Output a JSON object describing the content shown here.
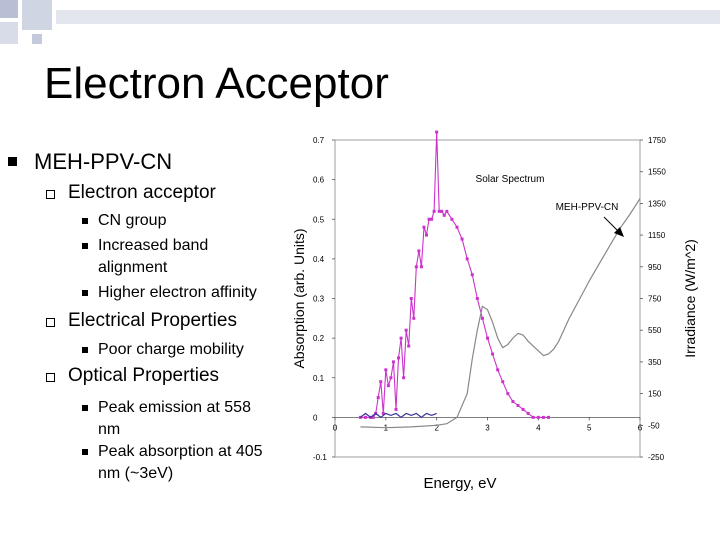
{
  "slide": {
    "title": "Electron Acceptor",
    "bullet_main": "MEH-PPV-CN",
    "sub1": "Electron acceptor",
    "sub1_items": [
      "CN group",
      "Increased band",
      "alignment",
      "Higher electron affinity"
    ],
    "sub2": "Electrical Properties",
    "sub2_items": [
      "Poor charge mobility"
    ],
    "sub3": "Optical Properties",
    "sub3_items": [
      "Peak emission at 558",
      "nm",
      "Peak absorption at 405",
      "nm (~3eV)"
    ]
  },
  "colors": {
    "solar": "#cc33cc",
    "meh": "#888888",
    "blue": "#333399",
    "deco1": "#c0c6d8",
    "deco2": "#dcdfe8"
  },
  "chart_data": {
    "type": "line",
    "xlabel": "Energy, eV",
    "ylabel": "Absorption (arb. Units)",
    "y2label": "Irradiance (W/m^2)",
    "xlim": [
      0,
      6
    ],
    "ylim": [
      -0.1,
      0.7
    ],
    "y2lim": [
      -250,
      1750
    ],
    "xticks": [
      "0",
      "1",
      "2",
      "3",
      "4",
      "5",
      "6"
    ],
    "yticks": [
      "-0.1",
      "0",
      "0.1",
      "0.2",
      "0.3",
      "0.4",
      "0.5",
      "0.6",
      "0.7"
    ],
    "y2ticks": [
      "-250",
      "-50",
      "150",
      "350",
      "550",
      "750",
      "950",
      "1150",
      "1350",
      "1550",
      "1750"
    ],
    "annotations": [
      "Solar Spectrum",
      "MEH-PPV-CN"
    ],
    "series": [
      {
        "name": "Solar Spectrum",
        "axis": "left",
        "x": [
          0.5,
          0.6,
          0.7,
          0.75,
          0.8,
          0.85,
          0.9,
          0.95,
          1.0,
          1.05,
          1.1,
          1.15,
          1.2,
          1.25,
          1.3,
          1.35,
          1.4,
          1.45,
          1.5,
          1.55,
          1.6,
          1.65,
          1.7,
          1.75,
          1.8,
          1.85,
          1.9,
          1.95,
          2.0,
          2.05,
          2.1,
          2.15,
          2.2,
          2.3,
          2.4,
          2.5,
          2.6,
          2.7,
          2.8,
          2.9,
          3.0,
          3.1,
          3.2,
          3.3,
          3.4,
          3.5,
          3.6,
          3.7,
          3.8,
          3.9,
          4.0,
          4.1,
          4.2
        ],
        "y": [
          0.0,
          0.0,
          0.0,
          0.0,
          0.01,
          0.05,
          0.09,
          0.01,
          0.12,
          0.08,
          0.1,
          0.14,
          0.02,
          0.15,
          0.2,
          0.1,
          0.22,
          0.18,
          0.3,
          0.25,
          0.38,
          0.42,
          0.38,
          0.48,
          0.46,
          0.5,
          0.5,
          0.52,
          0.72,
          0.52,
          0.52,
          0.51,
          0.52,
          0.5,
          0.48,
          0.45,
          0.4,
          0.36,
          0.3,
          0.25,
          0.2,
          0.16,
          0.12,
          0.09,
          0.06,
          0.04,
          0.03,
          0.02,
          0.01,
          0.0,
          0.0,
          0.0,
          0.0
        ]
      },
      {
        "name": "MEH-PPV-CN",
        "axis": "right",
        "x": [
          0.5,
          1.0,
          1.5,
          2.0,
          2.2,
          2.4,
          2.6,
          2.7,
          2.8,
          2.9,
          3.0,
          3.1,
          3.2,
          3.3,
          3.4,
          3.5,
          3.6,
          3.7,
          3.8,
          4.0,
          4.1,
          4.2,
          4.3,
          4.4,
          4.5,
          4.6,
          4.7,
          4.8,
          4.9,
          5.0,
          5.2,
          5.4,
          5.6,
          5.8,
          6.0
        ],
        "y": [
          -60,
          -65,
          -60,
          -50,
          -40,
          0,
          150,
          370,
          550,
          700,
          680,
          600,
          500,
          440,
          460,
          500,
          530,
          520,
          480,
          420,
          390,
          400,
          430,
          480,
          550,
          620,
          680,
          740,
          800,
          860,
          970,
          1080,
          1190,
          1280,
          1380
        ]
      },
      {
        "axis": "left",
        "x": [
          0.5,
          0.6,
          0.7,
          0.8,
          0.9,
          1.0,
          1.1,
          1.2,
          1.3,
          1.4,
          1.5,
          1.6,
          1.7,
          1.8,
          1.9,
          2.0
        ],
        "y": [
          0.0,
          0.01,
          0.0,
          0.01,
          0.0,
          0.01,
          0.005,
          0.01,
          0.0,
          0.01,
          0.005,
          0.01,
          0.0,
          0.01,
          0.005,
          0.01
        ]
      }
    ]
  }
}
